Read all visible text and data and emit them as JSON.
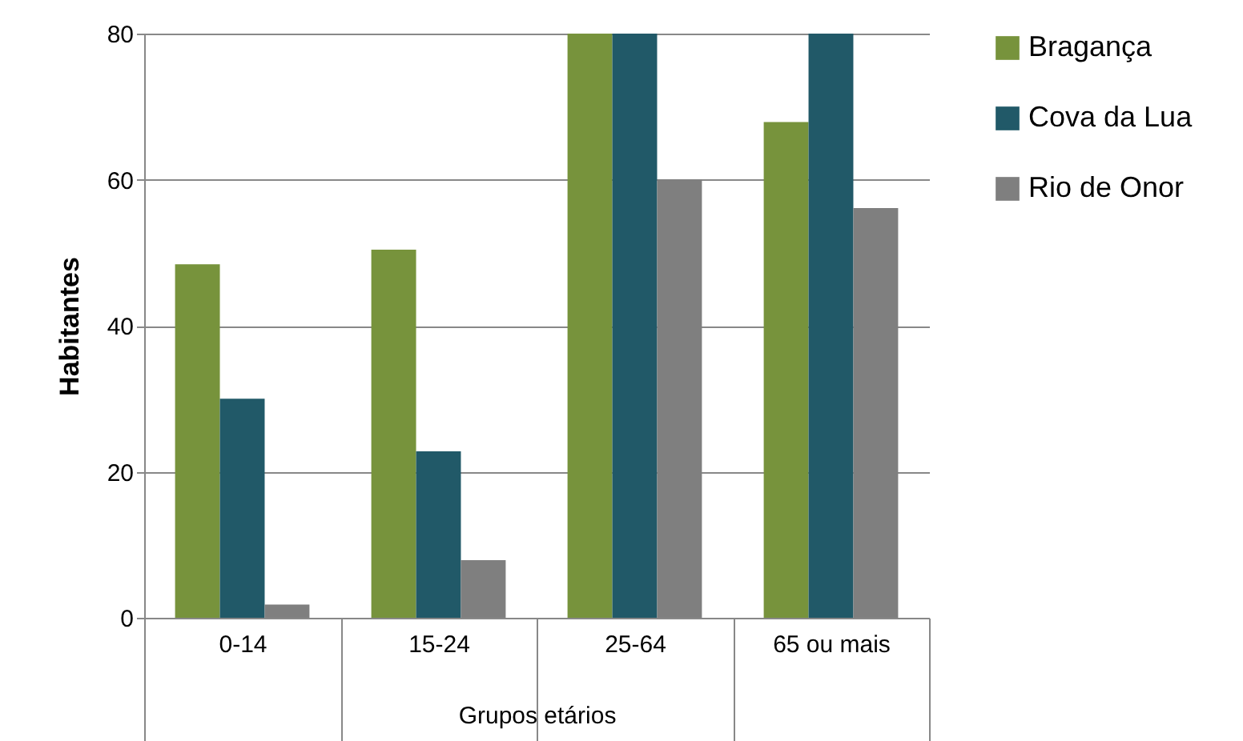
{
  "chart_data": {
    "type": "bar",
    "xlabel": "Grupos etários",
    "ylabel": "Habitantes",
    "categories": [
      "0-14",
      "15-24",
      "25-64",
      "65 ou mais"
    ],
    "series": [
      {
        "name": "Bragança",
        "color": "#77933c",
        "values": [
          48.4,
          50.4,
          80,
          67.9
        ]
      },
      {
        "name": "Cova da Lua",
        "color": "#215968",
        "values": [
          30,
          22.8,
          80,
          80
        ]
      },
      {
        "name": "Rio de Onor",
        "color": "#7f7f7f",
        "values": [
          1.8,
          7.9,
          60,
          56.1
        ]
      }
    ],
    "ylim": [
      0,
      80
    ],
    "yticks": [
      0,
      20,
      40,
      60,
      80
    ],
    "grid": "y",
    "legend": "right"
  }
}
